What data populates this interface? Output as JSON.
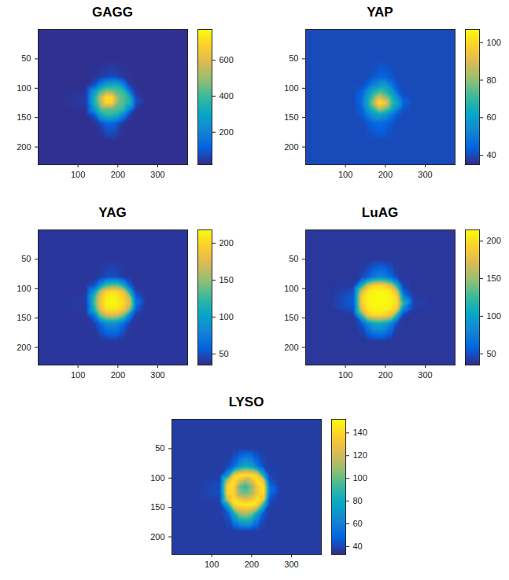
{
  "chart_data": [
    {
      "type": "heatmap",
      "title": "GAGG",
      "xlim": [
        0,
        375
      ],
      "ylim": [
        0,
        230
      ],
      "xticks": [
        100,
        200,
        300
      ],
      "yticks": [
        50,
        100,
        150,
        200
      ],
      "cells": {
        "x": [
          0,
          60,
          120,
          140,
          155,
          170,
          185,
          200,
          215,
          230,
          245,
          270,
          320,
          375
        ],
        "y": [
          0,
          50,
          80,
          95,
          105,
          115,
          125,
          135,
          145,
          160,
          190,
          230
        ],
        "values": [
          [
            30,
            30,
            30,
            30,
            30,
            30,
            30,
            30,
            30,
            30,
            30,
            30,
            30,
            30
          ],
          [
            30,
            30,
            30,
            30,
            30,
            30,
            30,
            30,
            30,
            30,
            30,
            30,
            30,
            30
          ],
          [
            30,
            30,
            30,
            35,
            45,
            60,
            70,
            60,
            40,
            35,
            30,
            30,
            30,
            30
          ],
          [
            30,
            30,
            30,
            80,
            200,
            300,
            330,
            330,
            200,
            60,
            30,
            30,
            30,
            30
          ],
          [
            30,
            30,
            40,
            250,
            400,
            480,
            470,
            420,
            380,
            150,
            40,
            30,
            30,
            30
          ],
          [
            30,
            30,
            50,
            330,
            520,
            720,
            700,
            480,
            420,
            330,
            60,
            30,
            30,
            30
          ],
          [
            30,
            30,
            50,
            330,
            500,
            700,
            680,
            470,
            420,
            360,
            80,
            30,
            30,
            30
          ],
          [
            30,
            30,
            40,
            250,
            420,
            450,
            450,
            420,
            380,
            200,
            40,
            30,
            30,
            30
          ],
          [
            30,
            30,
            30,
            100,
            300,
            380,
            380,
            330,
            200,
            60,
            30,
            30,
            30,
            30
          ],
          [
            30,
            30,
            30,
            35,
            60,
            120,
            120,
            80,
            40,
            30,
            30,
            30,
            30,
            30
          ],
          [
            30,
            30,
            30,
            30,
            30,
            30,
            30,
            30,
            30,
            30,
            30,
            30,
            30,
            30
          ],
          [
            30,
            30,
            30,
            30,
            30,
            30,
            30,
            30,
            30,
            30,
            30,
            30,
            30,
            30
          ]
        ]
      },
      "colorbar": {
        "range": [
          20,
          770
        ],
        "ticks": [
          200,
          400,
          600
        ]
      }
    },
    {
      "type": "heatmap",
      "title": "YAP",
      "xlim": [
        0,
        375
      ],
      "ylim": [
        0,
        230
      ],
      "xticks": [
        100,
        200,
        300
      ],
      "yticks": [
        50,
        100,
        150,
        200
      ],
      "cells": {
        "x": [
          0,
          60,
          120,
          140,
          155,
          170,
          185,
          200,
          215,
          230,
          245,
          270,
          320,
          375
        ],
        "y": [
          0,
          50,
          80,
          95,
          105,
          115,
          125,
          135,
          145,
          160,
          190,
          230
        ],
        "values": [
          [
            40,
            40,
            40,
            40,
            40,
            40,
            40,
            40,
            40,
            40,
            40,
            40,
            40,
            40
          ],
          [
            40,
            40,
            40,
            40,
            40,
            40,
            40,
            40,
            40,
            40,
            40,
            40,
            40,
            40
          ],
          [
            40,
            40,
            40,
            40,
            40,
            42,
            44,
            44,
            42,
            40,
            40,
            40,
            40,
            40
          ],
          [
            40,
            40,
            40,
            40,
            45,
            52,
            58,
            60,
            50,
            42,
            40,
            40,
            40,
            40
          ],
          [
            40,
            40,
            40,
            43,
            55,
            65,
            72,
            68,
            60,
            45,
            40,
            40,
            40,
            40
          ],
          [
            40,
            40,
            40,
            45,
            60,
            75,
            88,
            80,
            68,
            55,
            42,
            40,
            40,
            40
          ],
          [
            40,
            40,
            40,
            46,
            62,
            82,
            105,
            95,
            72,
            62,
            45,
            40,
            40,
            40
          ],
          [
            40,
            40,
            40,
            44,
            58,
            70,
            85,
            78,
            66,
            52,
            42,
            40,
            40,
            40
          ],
          [
            40,
            40,
            40,
            42,
            50,
            58,
            62,
            58,
            50,
            43,
            40,
            40,
            40,
            40
          ],
          [
            40,
            40,
            40,
            40,
            42,
            45,
            46,
            45,
            42,
            40,
            40,
            40,
            40,
            40
          ],
          [
            40,
            40,
            40,
            40,
            40,
            40,
            40,
            40,
            40,
            40,
            40,
            40,
            40,
            40
          ],
          [
            40,
            40,
            40,
            40,
            40,
            40,
            40,
            40,
            40,
            40,
            40,
            40,
            40,
            40
          ]
        ]
      },
      "colorbar": {
        "range": [
          35,
          107
        ],
        "ticks": [
          40,
          60,
          80,
          100
        ]
      }
    },
    {
      "type": "heatmap",
      "title": "YAG",
      "xlim": [
        0,
        375
      ],
      "ylim": [
        0,
        230
      ],
      "xticks": [
        100,
        200,
        300
      ],
      "yticks": [
        50,
        100,
        150,
        200
      ],
      "cells": {
        "x": [
          0,
          60,
          120,
          140,
          155,
          170,
          185,
          200,
          215,
          230,
          245,
          270,
          320,
          375
        ],
        "y": [
          0,
          50,
          80,
          95,
          105,
          115,
          125,
          135,
          145,
          160,
          190,
          230
        ],
        "values": [
          [
            40,
            40,
            40,
            40,
            40,
            40,
            40,
            40,
            40,
            40,
            40,
            40,
            40,
            40
          ],
          [
            40,
            40,
            40,
            40,
            40,
            40,
            40,
            40,
            40,
            40,
            40,
            40,
            40,
            40
          ],
          [
            40,
            40,
            40,
            40,
            42,
            48,
            50,
            48,
            42,
            40,
            40,
            40,
            40,
            40
          ],
          [
            40,
            40,
            40,
            50,
            90,
            130,
            140,
            140,
            110,
            60,
            40,
            40,
            40,
            40
          ],
          [
            40,
            40,
            40,
            90,
            160,
            195,
            205,
            200,
            180,
            110,
            45,
            40,
            40,
            40
          ],
          [
            40,
            40,
            42,
            120,
            180,
            210,
            215,
            210,
            195,
            160,
            60,
            40,
            40,
            40
          ],
          [
            40,
            40,
            42,
            125,
            185,
            212,
            218,
            212,
            200,
            175,
            70,
            40,
            40,
            40
          ],
          [
            40,
            40,
            42,
            110,
            175,
            205,
            210,
            205,
            190,
            150,
            55,
            40,
            40,
            40
          ],
          [
            40,
            40,
            40,
            70,
            140,
            170,
            175,
            170,
            140,
            80,
            42,
            40,
            40,
            40
          ],
          [
            40,
            40,
            40,
            42,
            60,
            80,
            85,
            80,
            60,
            42,
            40,
            40,
            40,
            40
          ],
          [
            40,
            40,
            40,
            40,
            40,
            40,
            40,
            40,
            40,
            40,
            40,
            40,
            40,
            40
          ],
          [
            40,
            40,
            40,
            40,
            40,
            40,
            40,
            40,
            40,
            40,
            40,
            40,
            40,
            40
          ]
        ]
      },
      "colorbar": {
        "range": [
          35,
          218
        ],
        "ticks": [
          50,
          100,
          150,
          200
        ]
      }
    },
    {
      "type": "heatmap",
      "title": "LuAG",
      "xlim": [
        0,
        375
      ],
      "ylim": [
        0,
        230
      ],
      "xticks": [
        100,
        200,
        300
      ],
      "yticks": [
        50,
        100,
        150,
        200
      ],
      "cells": {
        "x": [
          0,
          60,
          120,
          140,
          155,
          170,
          185,
          200,
          215,
          230,
          245,
          270,
          320,
          375
        ],
        "y": [
          0,
          50,
          80,
          95,
          105,
          115,
          125,
          135,
          145,
          160,
          190,
          230
        ],
        "values": [
          [
            40,
            40,
            40,
            40,
            40,
            40,
            40,
            40,
            40,
            40,
            40,
            40,
            40,
            40
          ],
          [
            40,
            40,
            40,
            40,
            40,
            40,
            40,
            40,
            40,
            40,
            40,
            40,
            40,
            40
          ],
          [
            40,
            40,
            40,
            45,
            55,
            70,
            80,
            75,
            60,
            45,
            40,
            40,
            40,
            40
          ],
          [
            40,
            40,
            42,
            110,
            170,
            195,
            200,
            195,
            170,
            110,
            45,
            40,
            40,
            40
          ],
          [
            40,
            40,
            50,
            170,
            205,
            212,
            215,
            212,
            205,
            170,
            60,
            40,
            40,
            40
          ],
          [
            40,
            40,
            55,
            190,
            210,
            215,
            215,
            215,
            210,
            195,
            90,
            42,
            40,
            40
          ],
          [
            40,
            40,
            55,
            190,
            210,
            215,
            215,
            215,
            210,
            200,
            120,
            45,
            40,
            40
          ],
          [
            40,
            40,
            50,
            175,
            205,
            212,
            212,
            210,
            205,
            185,
            80,
            42,
            40,
            40
          ],
          [
            40,
            40,
            42,
            120,
            185,
            200,
            200,
            195,
            180,
            110,
            45,
            40,
            40,
            40
          ],
          [
            40,
            40,
            40,
            50,
            80,
            100,
            105,
            95,
            75,
            45,
            40,
            40,
            40,
            40
          ],
          [
            40,
            40,
            40,
            40,
            40,
            40,
            40,
            40,
            40,
            40,
            40,
            40,
            40,
            40
          ],
          [
            40,
            40,
            40,
            40,
            40,
            40,
            40,
            40,
            40,
            40,
            40,
            40,
            40,
            40
          ]
        ]
      },
      "colorbar": {
        "range": [
          35,
          215
        ],
        "ticks": [
          50,
          100,
          150,
          200
        ]
      }
    },
    {
      "type": "heatmap",
      "title": "LYSO",
      "xlim": [
        0,
        375
      ],
      "ylim": [
        0,
        230
      ],
      "xticks": [
        100,
        200,
        300
      ],
      "yticks": [
        50,
        100,
        150,
        200
      ],
      "cells": {
        "x": [
          0,
          60,
          120,
          140,
          155,
          170,
          185,
          200,
          215,
          230,
          245,
          270,
          320,
          375
        ],
        "y": [
          0,
          50,
          80,
          95,
          105,
          115,
          125,
          135,
          145,
          160,
          190,
          230
        ],
        "values": [
          [
            38,
            38,
            38,
            38,
            38,
            38,
            38,
            38,
            38,
            38,
            38,
            38,
            38,
            38
          ],
          [
            38,
            38,
            38,
            38,
            38,
            38,
            38,
            38,
            38,
            38,
            38,
            38,
            38,
            38
          ],
          [
            38,
            38,
            38,
            40,
            50,
            70,
            80,
            75,
            55,
            42,
            38,
            38,
            38,
            38
          ],
          [
            38,
            38,
            38,
            70,
            130,
            145,
            145,
            145,
            135,
            80,
            40,
            38,
            38,
            38
          ],
          [
            38,
            38,
            40,
            120,
            145,
            125,
            110,
            125,
            145,
            130,
            45,
            38,
            38,
            38
          ],
          [
            38,
            38,
            42,
            140,
            140,
            100,
            90,
            105,
            135,
            145,
            55,
            38,
            38,
            38
          ],
          [
            38,
            38,
            42,
            140,
            140,
            105,
            100,
            110,
            135,
            145,
            55,
            38,
            38,
            38
          ],
          [
            38,
            38,
            40,
            125,
            145,
            130,
            120,
            130,
            145,
            135,
            45,
            38,
            38,
            38
          ],
          [
            38,
            38,
            38,
            80,
            140,
            148,
            148,
            148,
            140,
            90,
            40,
            38,
            38,
            38
          ],
          [
            38,
            38,
            38,
            45,
            80,
            110,
            115,
            105,
            75,
            45,
            38,
            38,
            38,
            38
          ],
          [
            38,
            38,
            38,
            38,
            38,
            38,
            38,
            38,
            38,
            38,
            38,
            38,
            38,
            38
          ],
          [
            38,
            38,
            38,
            38,
            38,
            38,
            38,
            38,
            38,
            38,
            38,
            38,
            38,
            38
          ]
        ]
      },
      "colorbar": {
        "range": [
          33,
          152
        ],
        "ticks": [
          40,
          60,
          80,
          100,
          120,
          140
        ]
      }
    }
  ]
}
